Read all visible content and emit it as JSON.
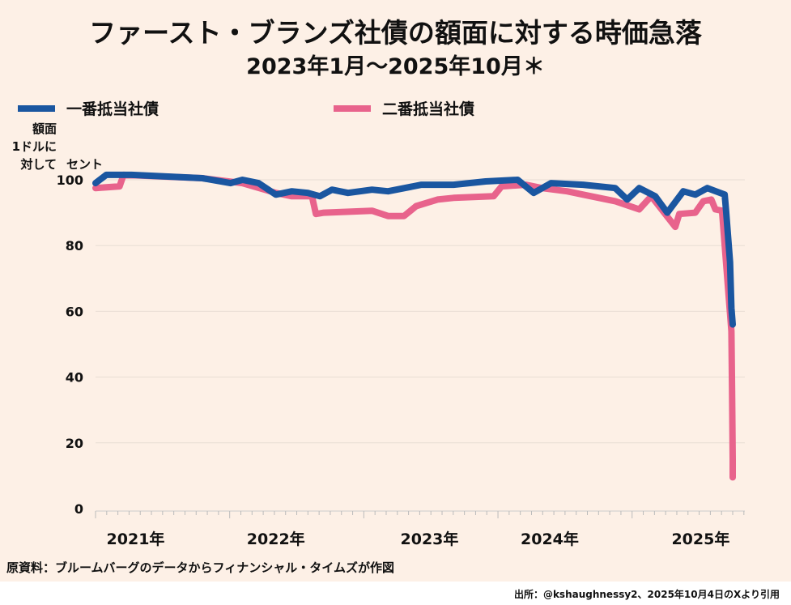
{
  "header": {
    "title": "ファースト・ブランズ社債の額面に対する時価急落",
    "subtitle": "2023年1月～2025年10月＊"
  },
  "unit_label": {
    "line1": "額面",
    "line2": "1ドルに",
    "line3": "対して",
    "line4": "セント"
  },
  "footer": {
    "source": "原資料：ブルームバーグのデータからフィナンシャル・タイムズが作図",
    "credit": "出所：@kshaughnessy2、2025年10月4日のXより引用"
  },
  "colors": {
    "background": "#fdf0e6",
    "first_lien": "#1a56a0",
    "second_lien": "#e8638c"
  },
  "chart_data": {
    "type": "line",
    "title": "ファースト・ブランズ社債の額面に対する時価急落",
    "subtitle": "2023年1月～2025年10月＊",
    "xlabel": "",
    "ylabel": "額面1ドルに対してセント",
    "ylim": [
      0,
      100
    ],
    "xlim": [
      2021.0,
      2025.9
    ],
    "yticks": [
      "0",
      "20",
      "40",
      "60",
      "80",
      "100"
    ],
    "ytick_values": [
      0,
      20,
      40,
      60,
      80,
      100
    ],
    "xticks": [
      {
        "label": "2021年",
        "pos": 2021.3
      },
      {
        "label": "2022年",
        "pos": 2022.35
      },
      {
        "label": "2023年",
        "pos": 2023.5
      },
      {
        "label": "2024年",
        "pos": 2024.4
      },
      {
        "label": "2025年",
        "pos": 2025.53
      }
    ],
    "grid": true,
    "legend_placement": "top",
    "series": [
      {
        "name": "一番抵当社債",
        "points": [
          [
            2021.0,
            99
          ],
          [
            2021.08,
            101.5
          ],
          [
            2021.27,
            101.5
          ],
          [
            2021.8,
            100.5
          ],
          [
            2022.01,
            99
          ],
          [
            2022.1,
            100
          ],
          [
            2022.22,
            99
          ],
          [
            2022.35,
            95.5
          ],
          [
            2022.47,
            96.5
          ],
          [
            2022.59,
            96
          ],
          [
            2022.68,
            95
          ],
          [
            2022.77,
            97
          ],
          [
            2022.89,
            96
          ],
          [
            2023.07,
            97
          ],
          [
            2023.19,
            96.5
          ],
          [
            2023.44,
            98.5
          ],
          [
            2023.68,
            98.5
          ],
          [
            2023.92,
            99.5
          ],
          [
            2024.16,
            100
          ],
          [
            2024.28,
            96
          ],
          [
            2024.41,
            99
          ],
          [
            2024.65,
            98.5
          ],
          [
            2024.89,
            97.5
          ],
          [
            2024.98,
            94
          ],
          [
            2025.07,
            97.5
          ],
          [
            2025.19,
            95
          ],
          [
            2025.28,
            90
          ],
          [
            2025.4,
            96.5
          ],
          [
            2025.49,
            95.5
          ],
          [
            2025.58,
            97.5
          ],
          [
            2025.71,
            95.5
          ],
          [
            2025.72,
            90.6
          ],
          [
            2025.75,
            75
          ],
          [
            2025.76,
            61
          ],
          [
            2025.77,
            56
          ]
        ]
      },
      {
        "name": "二番抵当社債",
        "points": [
          [
            2021.0,
            97.5
          ],
          [
            2021.18,
            98
          ],
          [
            2021.21,
            101.5
          ],
          [
            2021.8,
            100.5
          ],
          [
            2022.1,
            99
          ],
          [
            2022.35,
            96
          ],
          [
            2022.47,
            95
          ],
          [
            2022.62,
            95
          ],
          [
            2022.65,
            89.6
          ],
          [
            2022.71,
            90
          ],
          [
            2023.07,
            90.6
          ],
          [
            2023.19,
            89
          ],
          [
            2023.31,
            89
          ],
          [
            2023.4,
            92
          ],
          [
            2023.56,
            94
          ],
          [
            2023.68,
            94.5
          ],
          [
            2023.98,
            95
          ],
          [
            2024.04,
            98
          ],
          [
            2024.22,
            98.5
          ],
          [
            2024.34,
            97.5
          ],
          [
            2024.53,
            96.5
          ],
          [
            2024.65,
            95.5
          ],
          [
            2024.89,
            93.5
          ],
          [
            2025.07,
            91
          ],
          [
            2025.16,
            95
          ],
          [
            2025.34,
            85.7
          ],
          [
            2025.37,
            89.6
          ],
          [
            2025.49,
            90
          ],
          [
            2025.55,
            93.5
          ],
          [
            2025.61,
            94
          ],
          [
            2025.64,
            91
          ],
          [
            2025.69,
            90.6
          ],
          [
            2025.76,
            54
          ],
          [
            2025.765,
            36
          ],
          [
            2025.77,
            15
          ],
          [
            2025.77,
            9.5
          ]
        ]
      }
    ]
  }
}
